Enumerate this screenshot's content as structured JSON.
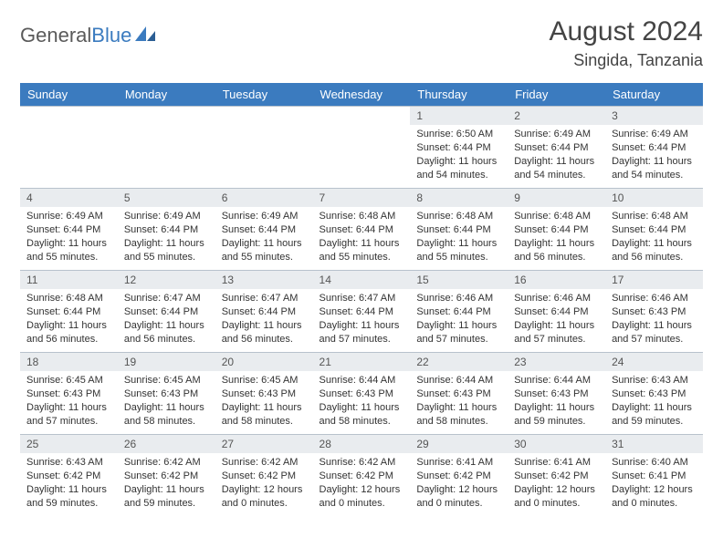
{
  "brand": {
    "part1": "General",
    "part2": "Blue"
  },
  "title": "August 2024",
  "location": "Singida, Tanzania",
  "colors": {
    "header_bg": "#3b7bbf",
    "header_text": "#ffffff",
    "daynum_bg": "#e9ecef",
    "border": "#b8c2cc",
    "body_text": "#333333",
    "title_text": "#444444",
    "logo_gray": "#5a5a5a",
    "logo_blue": "#3b7bbf"
  },
  "weekdays": [
    "Sunday",
    "Monday",
    "Tuesday",
    "Wednesday",
    "Thursday",
    "Friday",
    "Saturday"
  ],
  "first_weekday_index": 4,
  "days": [
    {
      "n": 1,
      "sunrise": "6:50 AM",
      "sunset": "6:44 PM",
      "daylight": "11 hours and 54 minutes."
    },
    {
      "n": 2,
      "sunrise": "6:49 AM",
      "sunset": "6:44 PM",
      "daylight": "11 hours and 54 minutes."
    },
    {
      "n": 3,
      "sunrise": "6:49 AM",
      "sunset": "6:44 PM",
      "daylight": "11 hours and 54 minutes."
    },
    {
      "n": 4,
      "sunrise": "6:49 AM",
      "sunset": "6:44 PM",
      "daylight": "11 hours and 55 minutes."
    },
    {
      "n": 5,
      "sunrise": "6:49 AM",
      "sunset": "6:44 PM",
      "daylight": "11 hours and 55 minutes."
    },
    {
      "n": 6,
      "sunrise": "6:49 AM",
      "sunset": "6:44 PM",
      "daylight": "11 hours and 55 minutes."
    },
    {
      "n": 7,
      "sunrise": "6:48 AM",
      "sunset": "6:44 PM",
      "daylight": "11 hours and 55 minutes."
    },
    {
      "n": 8,
      "sunrise": "6:48 AM",
      "sunset": "6:44 PM",
      "daylight": "11 hours and 55 minutes."
    },
    {
      "n": 9,
      "sunrise": "6:48 AM",
      "sunset": "6:44 PM",
      "daylight": "11 hours and 56 minutes."
    },
    {
      "n": 10,
      "sunrise": "6:48 AM",
      "sunset": "6:44 PM",
      "daylight": "11 hours and 56 minutes."
    },
    {
      "n": 11,
      "sunrise": "6:48 AM",
      "sunset": "6:44 PM",
      "daylight": "11 hours and 56 minutes."
    },
    {
      "n": 12,
      "sunrise": "6:47 AM",
      "sunset": "6:44 PM",
      "daylight": "11 hours and 56 minutes."
    },
    {
      "n": 13,
      "sunrise": "6:47 AM",
      "sunset": "6:44 PM",
      "daylight": "11 hours and 56 minutes."
    },
    {
      "n": 14,
      "sunrise": "6:47 AM",
      "sunset": "6:44 PM",
      "daylight": "11 hours and 57 minutes."
    },
    {
      "n": 15,
      "sunrise": "6:46 AM",
      "sunset": "6:44 PM",
      "daylight": "11 hours and 57 minutes."
    },
    {
      "n": 16,
      "sunrise": "6:46 AM",
      "sunset": "6:44 PM",
      "daylight": "11 hours and 57 minutes."
    },
    {
      "n": 17,
      "sunrise": "6:46 AM",
      "sunset": "6:43 PM",
      "daylight": "11 hours and 57 minutes."
    },
    {
      "n": 18,
      "sunrise": "6:45 AM",
      "sunset": "6:43 PM",
      "daylight": "11 hours and 57 minutes."
    },
    {
      "n": 19,
      "sunrise": "6:45 AM",
      "sunset": "6:43 PM",
      "daylight": "11 hours and 58 minutes."
    },
    {
      "n": 20,
      "sunrise": "6:45 AM",
      "sunset": "6:43 PM",
      "daylight": "11 hours and 58 minutes."
    },
    {
      "n": 21,
      "sunrise": "6:44 AM",
      "sunset": "6:43 PM",
      "daylight": "11 hours and 58 minutes."
    },
    {
      "n": 22,
      "sunrise": "6:44 AM",
      "sunset": "6:43 PM",
      "daylight": "11 hours and 58 minutes."
    },
    {
      "n": 23,
      "sunrise": "6:44 AM",
      "sunset": "6:43 PM",
      "daylight": "11 hours and 59 minutes."
    },
    {
      "n": 24,
      "sunrise": "6:43 AM",
      "sunset": "6:43 PM",
      "daylight": "11 hours and 59 minutes."
    },
    {
      "n": 25,
      "sunrise": "6:43 AM",
      "sunset": "6:42 PM",
      "daylight": "11 hours and 59 minutes."
    },
    {
      "n": 26,
      "sunrise": "6:42 AM",
      "sunset": "6:42 PM",
      "daylight": "11 hours and 59 minutes."
    },
    {
      "n": 27,
      "sunrise": "6:42 AM",
      "sunset": "6:42 PM",
      "daylight": "12 hours and 0 minutes."
    },
    {
      "n": 28,
      "sunrise": "6:42 AM",
      "sunset": "6:42 PM",
      "daylight": "12 hours and 0 minutes."
    },
    {
      "n": 29,
      "sunrise": "6:41 AM",
      "sunset": "6:42 PM",
      "daylight": "12 hours and 0 minutes."
    },
    {
      "n": 30,
      "sunrise": "6:41 AM",
      "sunset": "6:42 PM",
      "daylight": "12 hours and 0 minutes."
    },
    {
      "n": 31,
      "sunrise": "6:40 AM",
      "sunset": "6:41 PM",
      "daylight": "12 hours and 0 minutes."
    }
  ],
  "labels": {
    "sunrise": "Sunrise:",
    "sunset": "Sunset:",
    "daylight": "Daylight:"
  }
}
